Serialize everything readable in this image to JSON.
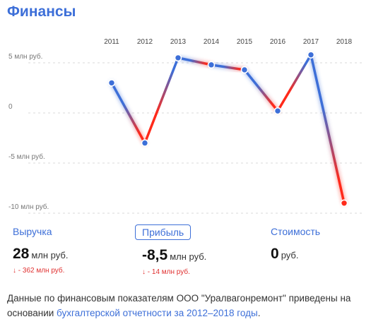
{
  "page_title": "Финансы",
  "chart_data": {
    "type": "line",
    "x": [
      "2011",
      "2012",
      "2013",
      "2014",
      "2015",
      "2016",
      "2017",
      "2018"
    ],
    "values": [
      3,
      -3,
      5.5,
      4.8,
      4.3,
      0.2,
      5.8,
      -9
    ],
    "y_ticks": [
      {
        "value": 5,
        "label": "5 млн руб."
      },
      {
        "value": 0,
        "label": "0"
      },
      {
        "value": -5,
        "label": "-5 млн руб."
      },
      {
        "value": -10,
        "label": "-10 млн руб."
      }
    ],
    "ylim": [
      -10,
      5
    ],
    "grid": true,
    "colors": {
      "rise": "#3d6fd8",
      "fall": "#ff2a1a",
      "point_fill": "#3d6fd8",
      "point_stroke": "#ffffff"
    }
  },
  "metrics": [
    {
      "label": "Выручка",
      "value": "28",
      "unit": "млн руб.",
      "change": "↓ - 362 млн руб.",
      "selected": false
    },
    {
      "label": "Прибыль",
      "value": "-8,5",
      "unit": "млн руб.",
      "change": "↓ - 14 млн руб.",
      "selected": true
    },
    {
      "label": "Стоимость",
      "value": "0",
      "unit": "руб.",
      "change": "",
      "selected": false
    }
  ],
  "footnote": {
    "text": "Данные по финансовым показателям ООО \"Уралвагонремонт\" приведены на основании ",
    "link": "бухгалтерской отчетности за 2012–2018 годы",
    "end": "."
  }
}
